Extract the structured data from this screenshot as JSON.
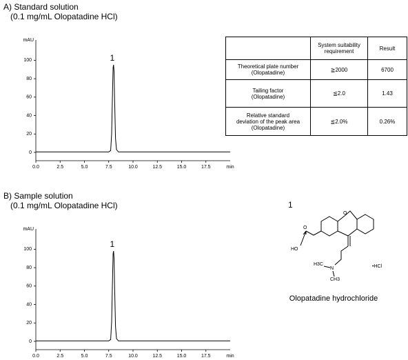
{
  "chart_data": [
    {
      "type": "line",
      "title": "A) Standard solution",
      "subtitle": "(0.1 mg/mL Olopatadine HCl)",
      "y_label": "mAU",
      "x_label": "min",
      "peak_label": "1",
      "x": [
        0,
        7.5,
        7.7,
        7.8,
        7.9,
        7.95,
        8.0,
        8.05,
        8.1,
        8.2,
        8.3,
        8.5,
        20
      ],
      "series": [
        {
          "color": "#000000",
          "values": [
            0.5,
            0.5,
            2,
            20,
            70,
            92,
            95,
            88,
            60,
            15,
            3,
            0.5,
            0.5
          ]
        }
      ],
      "xlim": [
        0,
        20
      ],
      "ylim": [
        -9,
        122
      ],
      "xticks": [
        {
          "value": 0,
          "label": "0.0"
        },
        {
          "value": 2.5,
          "label": "2.5"
        },
        {
          "value": 5,
          "label": "5.0"
        },
        {
          "value": 7.5,
          "label": "7.5"
        },
        {
          "value": 10,
          "label": "10.0"
        },
        {
          "value": 12.5,
          "label": "12.5"
        },
        {
          "value": 15,
          "label": "15.0"
        },
        {
          "value": 17.5,
          "label": "17.5"
        }
      ],
      "yticks": [
        0,
        20,
        40,
        60,
        80,
        100
      ]
    },
    {
      "type": "line",
      "title": "B) Sample solution",
      "subtitle": "(0.1 mg/mL Olopatadine HCl)",
      "y_label": "mAU",
      "x_label": "min",
      "peak_label": "1",
      "x": [
        0,
        7.5,
        7.7,
        7.8,
        7.9,
        7.95,
        8.0,
        8.05,
        8.1,
        8.2,
        8.3,
        8.5,
        20
      ],
      "series": [
        {
          "color": "#000000",
          "values": [
            0.5,
            0.5,
            2,
            21,
            72,
            95,
            98,
            90,
            62,
            16,
            3,
            0.5,
            0.5
          ]
        }
      ],
      "xlim": [
        0,
        20
      ],
      "ylim": [
        -9,
        122
      ],
      "xticks": [
        {
          "value": 0,
          "label": "0.0"
        },
        {
          "value": 2.5,
          "label": "2.5"
        },
        {
          "value": 5,
          "label": "5.0"
        },
        {
          "value": 7.5,
          "label": "7.5"
        },
        {
          "value": 10,
          "label": "10.0"
        },
        {
          "value": 12.5,
          "label": "12.5"
        },
        {
          "value": 15,
          "label": "15.0"
        },
        {
          "value": 17.5,
          "label": "17.5"
        }
      ],
      "yticks": [
        0,
        20,
        40,
        60,
        80,
        100
      ]
    }
  ],
  "table": {
    "header": [
      "System suitability\nrequirement",
      "Result"
    ],
    "rows": [
      [
        "Theoretical plate number\n(Olopatadine)",
        "≧2000",
        "6700"
      ],
      [
        "Tailing factor\n(Olopatadine)",
        "≦2.0",
        "1.43"
      ],
      [
        "Relative standard\ndeviation of the peak area\n(Olopatadine)",
        "≦2.0%",
        "0.26%"
      ]
    ]
  },
  "structure": {
    "number": "1",
    "name": "Olopatadine hydrochloride",
    "atoms": {
      "o_acid": "O",
      "ho": "HO",
      "o_ring": "O",
      "h3c": "H3C",
      "n": "N",
      "ch3": "CH3",
      "hcl": "•HCl"
    }
  }
}
